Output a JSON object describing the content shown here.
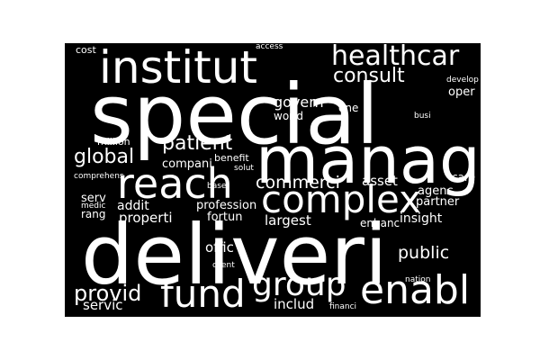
{
  "cloud": {
    "background_color": "#000000",
    "text_color": "#ffffff",
    "words": [
      {
        "key": "special",
        "text": "special"
      },
      {
        "key": "deliveri",
        "text": "deliveri"
      },
      {
        "key": "manag",
        "text": "manag"
      },
      {
        "key": "institut",
        "text": "institut"
      },
      {
        "key": "complex",
        "text": "complex"
      },
      {
        "key": "reach",
        "text": "reach"
      },
      {
        "key": "enabl",
        "text": "enabl"
      },
      {
        "key": "fund",
        "text": "fund"
      },
      {
        "key": "group",
        "text": "group"
      },
      {
        "key": "healthcar",
        "text": "healthcar"
      },
      {
        "key": "consult",
        "text": "consult"
      },
      {
        "key": "patient",
        "text": "patient"
      },
      {
        "key": "global",
        "text": "global"
      },
      {
        "key": "provid",
        "text": "provid"
      },
      {
        "key": "commerci",
        "text": "commerci"
      },
      {
        "key": "public",
        "text": "public"
      },
      {
        "key": "govern",
        "text": "govern"
      },
      {
        "key": "oper",
        "text": "oper"
      },
      {
        "key": "asset",
        "text": "asset"
      },
      {
        "key": "agenc",
        "text": "agenc"
      },
      {
        "key": "partner",
        "text": "partner"
      },
      {
        "key": "insight",
        "text": "insight"
      },
      {
        "key": "properti",
        "text": "properti"
      },
      {
        "key": "largest",
        "text": "largest"
      },
      {
        "key": "includ",
        "text": "includ"
      },
      {
        "key": "servic",
        "text": "servic"
      },
      {
        "key": "offic",
        "text": "offic"
      },
      {
        "key": "addit",
        "text": "addit"
      },
      {
        "key": "serv",
        "text": "serv"
      },
      {
        "key": "compani",
        "text": "compani"
      },
      {
        "key": "world",
        "text": "world"
      },
      {
        "key": "one",
        "text": "one"
      },
      {
        "key": "care",
        "text": "care"
      },
      {
        "key": "profession",
        "text": "profession"
      },
      {
        "key": "fortun",
        "text": "fortun"
      },
      {
        "key": "enhanc",
        "text": "enhanc"
      },
      {
        "key": "rang",
        "text": "rang"
      },
      {
        "key": "million",
        "text": "million"
      },
      {
        "key": "benefit",
        "text": "benefit"
      },
      {
        "key": "cost",
        "text": "cost"
      },
      {
        "key": "access",
        "text": "access"
      },
      {
        "key": "develop",
        "text": "develop"
      },
      {
        "key": "busi",
        "text": "busi"
      },
      {
        "key": "solut",
        "text": "solut"
      },
      {
        "key": "comprehens",
        "text": "comprehens"
      },
      {
        "key": "medic",
        "text": "medic"
      },
      {
        "key": "base",
        "text": "base"
      },
      {
        "key": "client",
        "text": "client"
      },
      {
        "key": "nation",
        "text": "nation"
      },
      {
        "key": "financi",
        "text": "financi"
      }
    ]
  }
}
